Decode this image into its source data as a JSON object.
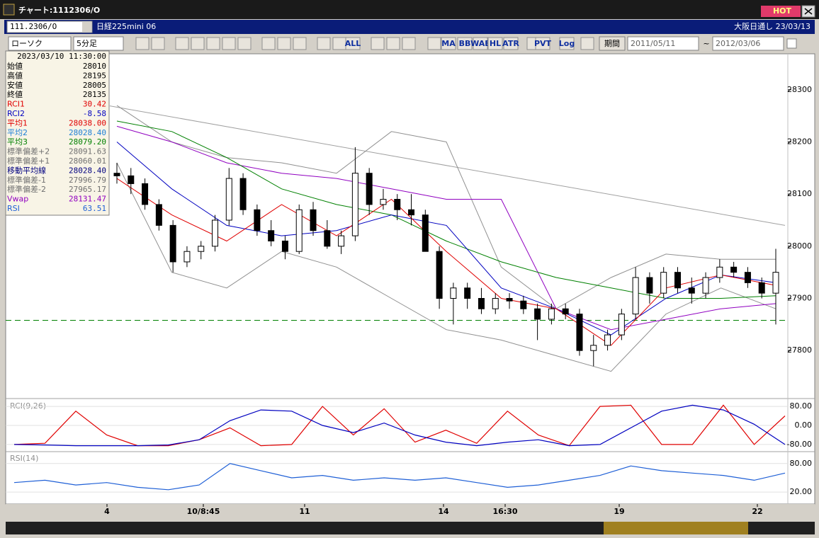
{
  "window": {
    "title": "チャート:1112306/O",
    "hot": "HOT"
  },
  "header": {
    "symbol": "111.2306/O",
    "name": "日経225mini 06",
    "market": "大阪日通し 23/03/13"
  },
  "toolbar": {
    "chart_type": "ローソク",
    "interval": "5分足",
    "buttons": [
      "ALL",
      "MA",
      "BB",
      "WAE",
      "HL",
      "ATR",
      "PVT",
      "Log"
    ],
    "period": "期間",
    "from": "2011/05/11",
    "tilde": "~",
    "to": "2012/03/06"
  },
  "info": {
    "timestamp": "2023/03/10 11:30:00",
    "rows": [
      {
        "label": "始値",
        "value": "28010",
        "color": "#000000"
      },
      {
        "label": "高値",
        "value": "28195",
        "color": "#000000"
      },
      {
        "label": "安値",
        "value": "28005",
        "color": "#000000"
      },
      {
        "label": "終値",
        "value": "28135",
        "color": "#000000"
      },
      {
        "label": "RCI1",
        "value": "30.42",
        "color": "#e00000"
      },
      {
        "label": "RCI2",
        "value": "-8.58",
        "color": "#0000c0"
      },
      {
        "label": "平均1",
        "value": "28038.00",
        "color": "#e00000"
      },
      {
        "label": "平均2",
        "value": "28028.40",
        "color": "#1e7fd6"
      },
      {
        "label": "平均3",
        "value": "28079.20",
        "color": "#008000"
      },
      {
        "label": "標準偏差+2",
        "value": "28091.63",
        "color": "#707070"
      },
      {
        "label": "標準偏差+1",
        "value": "28060.01",
        "color": "#707070"
      },
      {
        "label": "移動平均線",
        "value": "28028.40",
        "color": "#000080"
      },
      {
        "label": "標準偏差-1",
        "value": "27996.79",
        "color": "#707070"
      },
      {
        "label": "標準偏差-2",
        "value": "27965.17",
        "color": "#707070"
      },
      {
        "label": "Vwap",
        "value": "28131.47",
        "color": "#9000c0"
      },
      {
        "label": "RSI",
        "value": "63.51",
        "color": "#1e5fd6"
      }
    ]
  },
  "chart_data": [
    {
      "type": "candlestick",
      "ylim": [
        27712,
        28369
      ],
      "yticks": [
        27800,
        27900,
        28000,
        28100,
        28200,
        28300
      ],
      "x_labels": [
        "4",
        "10/8:45",
        "11",
        "14",
        "16:30",
        "19",
        "22"
      ],
      "candles": [
        [
          28140,
          28160,
          28120,
          28135
        ],
        [
          28135,
          28150,
          28100,
          28120
        ],
        [
          28120,
          28130,
          28070,
          28080
        ],
        [
          28080,
          28090,
          28030,
          28040
        ],
        [
          28040,
          28050,
          27950,
          27970
        ],
        [
          27970,
          28000,
          27960,
          27990
        ],
        [
          27990,
          28010,
          27975,
          28000
        ],
        [
          28000,
          28060,
          27990,
          28050
        ],
        [
          28050,
          28150,
          28040,
          28130
        ],
        [
          28130,
          28140,
          28060,
          28070
        ],
        [
          28070,
          28080,
          28020,
          28030
        ],
        [
          28030,
          28050,
          28000,
          28010
        ],
        [
          28010,
          28020,
          27975,
          27990
        ],
        [
          27990,
          28080,
          27985,
          28070
        ],
        [
          28070,
          28085,
          28020,
          28030
        ],
        [
          28030,
          28050,
          27995,
          28000
        ],
        [
          28000,
          28030,
          27985,
          28020
        ],
        [
          28020,
          28190,
          28010,
          28140
        ],
        [
          28140,
          28150,
          28060,
          28080
        ],
        [
          28080,
          28110,
          28070,
          28090
        ],
        [
          28090,
          28100,
          28050,
          28070
        ],
        [
          28070,
          28100,
          28040,
          28060
        ],
        [
          28060,
          28070,
          27990,
          27990
        ],
        [
          27990,
          28000,
          27880,
          27900
        ],
        [
          27900,
          27930,
          27850,
          27920
        ],
        [
          27920,
          27930,
          27880,
          27900
        ],
        [
          27900,
          27920,
          27870,
          27880
        ],
        [
          27880,
          27910,
          27870,
          27900
        ],
        [
          27900,
          27910,
          27880,
          27895
        ],
        [
          27895,
          27905,
          27870,
          27880
        ],
        [
          27880,
          27890,
          27820,
          27860
        ],
        [
          27860,
          27890,
          27850,
          27880
        ],
        [
          27880,
          27890,
          27860,
          27870
        ],
        [
          27870,
          27880,
          27790,
          27800
        ],
        [
          27800,
          27830,
          27770,
          27810
        ],
        [
          27810,
          27840,
          27800,
          27830
        ],
        [
          27830,
          27880,
          27820,
          27870
        ],
        [
          27870,
          27960,
          27860,
          27940
        ],
        [
          27940,
          27950,
          27890,
          27910
        ],
        [
          27910,
          27960,
          27900,
          27950
        ],
        [
          27950,
          27960,
          27910,
          27920
        ],
        [
          27920,
          27940,
          27890,
          27910
        ],
        [
          27910,
          27950,
          27900,
          27940
        ],
        [
          27940,
          27975,
          27930,
          27960
        ],
        [
          27960,
          27970,
          27940,
          27950
        ],
        [
          27950,
          27960,
          27920,
          27930
        ],
        [
          27930,
          27940,
          27900,
          27910
        ],
        [
          27910,
          27995,
          27850,
          27950
        ]
      ],
      "series": [
        {
          "color": "#909090",
          "values": [
            28270,
            28200,
            28170,
            28160,
            28140,
            28220,
            28200,
            27960,
            27880,
            27940,
            27985,
            27975,
            27975
          ]
        },
        {
          "color": "#909090",
          "values": [
            28160,
            27950,
            27920,
            27990,
            27960,
            27900,
            27840,
            27820,
            27790,
            27760,
            27870,
            27920,
            27880
          ]
        },
        {
          "color": "#9000c0",
          "values": [
            28230,
            28200,
            28160,
            28140,
            28130,
            28110,
            28090,
            28090,
            27880,
            27840,
            27860,
            27880,
            27890
          ]
        },
        {
          "color": "#008000",
          "values": [
            28240,
            28220,
            28170,
            28110,
            28080,
            28060,
            28010,
            27970,
            27940,
            27920,
            27900,
            27900,
            27905
          ]
        },
        {
          "color": "#0000c0",
          "values": [
            28200,
            28110,
            28040,
            28020,
            28030,
            28060,
            28040,
            27920,
            27880,
            27830,
            27900,
            27945,
            27930
          ]
        },
        {
          "color": "#e00000",
          "values": [
            28130,
            28060,
            28010,
            28080,
            28020,
            28090,
            27990,
            27900,
            27880,
            27810,
            27920,
            27945,
            27925
          ]
        }
      ],
      "trendline": {
        "color": "#a0a0a0",
        "values": [
          28269,
          28040
        ]
      },
      "level": {
        "color": "#008000",
        "value": 27858
      }
    },
    {
      "type": "line",
      "title": "RCI(9,26)",
      "ylim": [
        -104,
        104
      ],
      "yticks": [
        {
          "value": 80,
          "label": "80.00"
        },
        {
          "value": 0,
          "label": "0.00"
        },
        {
          "value": -80,
          "label": "-80.00"
        }
      ],
      "series": [
        {
          "color": "#e00000",
          "values": [
            -80,
            -75,
            60,
            -40,
            -85,
            -85,
            -60,
            -10,
            -85,
            -80,
            80,
            -40,
            70,
            -70,
            -20,
            -75,
            60,
            -40,
            -85,
            80,
            85,
            -80,
            -80,
            85,
            -80,
            40
          ]
        },
        {
          "color": "#0000c0",
          "values": [
            -80,
            -82,
            -85,
            -85,
            -85,
            -82,
            -60,
            20,
            65,
            60,
            0,
            -30,
            10,
            -40,
            -70,
            -85,
            -70,
            -60,
            -85,
            -80,
            -10,
            60,
            85,
            65,
            5,
            -80
          ]
        }
      ]
    },
    {
      "type": "line",
      "title": "RSI(14)",
      "ylim": [
        -5,
        102
      ],
      "yticks": [
        {
          "value": 80,
          "label": "80.00"
        },
        {
          "value": 20,
          "label": "20.00"
        }
      ],
      "series": [
        {
          "color": "#1e5fd6",
          "values": [
            40,
            45,
            35,
            40,
            30,
            25,
            35,
            80,
            65,
            50,
            55,
            45,
            50,
            45,
            50,
            40,
            30,
            35,
            45,
            55,
            75,
            65,
            60,
            55,
            45,
            60
          ]
        }
      ]
    }
  ]
}
